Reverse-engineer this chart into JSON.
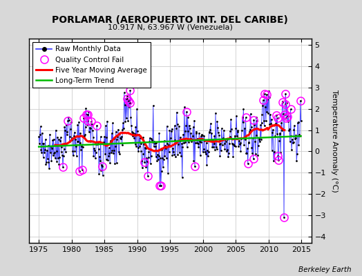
{
  "title": "PORLAMAR (AEROPUERTO INT. DEL CARIBE)",
  "subtitle": "10.917 N, 63.967 W (Venezuela)",
  "watermark": "Berkeley Earth",
  "xlim": [
    1973.5,
    2016.5
  ],
  "ylim": [
    -4.3,
    5.3
  ],
  "yticks": [
    -4,
    -3,
    -2,
    -1,
    0,
    1,
    2,
    3,
    4,
    5
  ],
  "xticks": [
    1975,
    1980,
    1985,
    1990,
    1995,
    2000,
    2005,
    2010,
    2015
  ],
  "ylabel": "Temperature Anomaly (°C)",
  "raw_color": "#3333ff",
  "ma_color": "#ff0000",
  "trend_color": "#00bb00",
  "qc_color": "#ff00ff",
  "plot_bg": "#ffffff",
  "fig_bg": "#d8d8d8",
  "seed": 42
}
